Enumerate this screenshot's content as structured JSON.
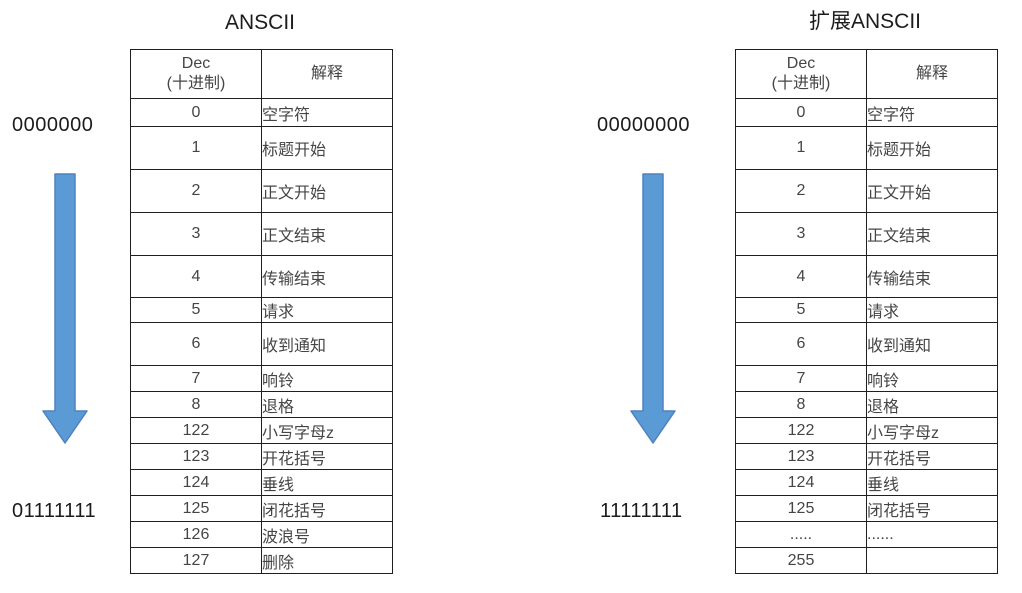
{
  "colors": {
    "arrow_fill": "#5b9bd5",
    "arrow_stroke": "#4f81bd",
    "table_border": "#1f1f1f",
    "cell_text": "#454545",
    "label_text": "#1c1c1c"
  },
  "left_panel": {
    "title": "ANSCII",
    "binary_top": "0000000",
    "binary_bottom": "01111111",
    "table": {
      "header": {
        "col1_line1": "Dec",
        "col1_line2": "(十进制)",
        "col2": "解释"
      },
      "rows": [
        {
          "dec": "0",
          "desc": "空字符"
        },
        {
          "dec": "1",
          "desc": "标题开始"
        },
        {
          "dec": "2",
          "desc": "正文开始"
        },
        {
          "dec": "3",
          "desc": "正文结束"
        },
        {
          "dec": "4",
          "desc": "传输结束"
        },
        {
          "dec": "5",
          "desc": "请求"
        },
        {
          "dec": "6",
          "desc": "收到通知"
        },
        {
          "dec": "7",
          "desc": "响铃"
        },
        {
          "dec": "8",
          "desc": "退格"
        },
        {
          "dec": "122",
          "desc": "小写字母z"
        },
        {
          "dec": "123",
          "desc": "开花括号"
        },
        {
          "dec": "124",
          "desc": "垂线"
        },
        {
          "dec": "125",
          "desc": "闭花括号"
        },
        {
          "dec": "126",
          "desc": "波浪号"
        },
        {
          "dec": "127",
          "desc": "删除"
        }
      ]
    }
  },
  "right_panel": {
    "title": "扩展ANSCII",
    "binary_top": "00000000",
    "binary_bottom": "11111111",
    "table": {
      "header": {
        "col1_line1": "Dec",
        "col1_line2": "(十进制)",
        "col2": "解释"
      },
      "rows": [
        {
          "dec": "0",
          "desc": "空字符"
        },
        {
          "dec": "1",
          "desc": "标题开始"
        },
        {
          "dec": "2",
          "desc": "正文开始"
        },
        {
          "dec": "3",
          "desc": "正文结束"
        },
        {
          "dec": "4",
          "desc": "传输结束"
        },
        {
          "dec": "5",
          "desc": "请求"
        },
        {
          "dec": "6",
          "desc": "收到通知"
        },
        {
          "dec": "7",
          "desc": "响铃"
        },
        {
          "dec": "8",
          "desc": "退格"
        },
        {
          "dec": "122",
          "desc": "小写字母z"
        },
        {
          "dec": "123",
          "desc": "开花括号"
        },
        {
          "dec": "124",
          "desc": "垂线"
        },
        {
          "dec": "125",
          "desc": "闭花括号"
        },
        {
          "dec": ".....",
          "desc": "......"
        },
        {
          "dec": "255",
          "desc": ""
        }
      ]
    }
  }
}
